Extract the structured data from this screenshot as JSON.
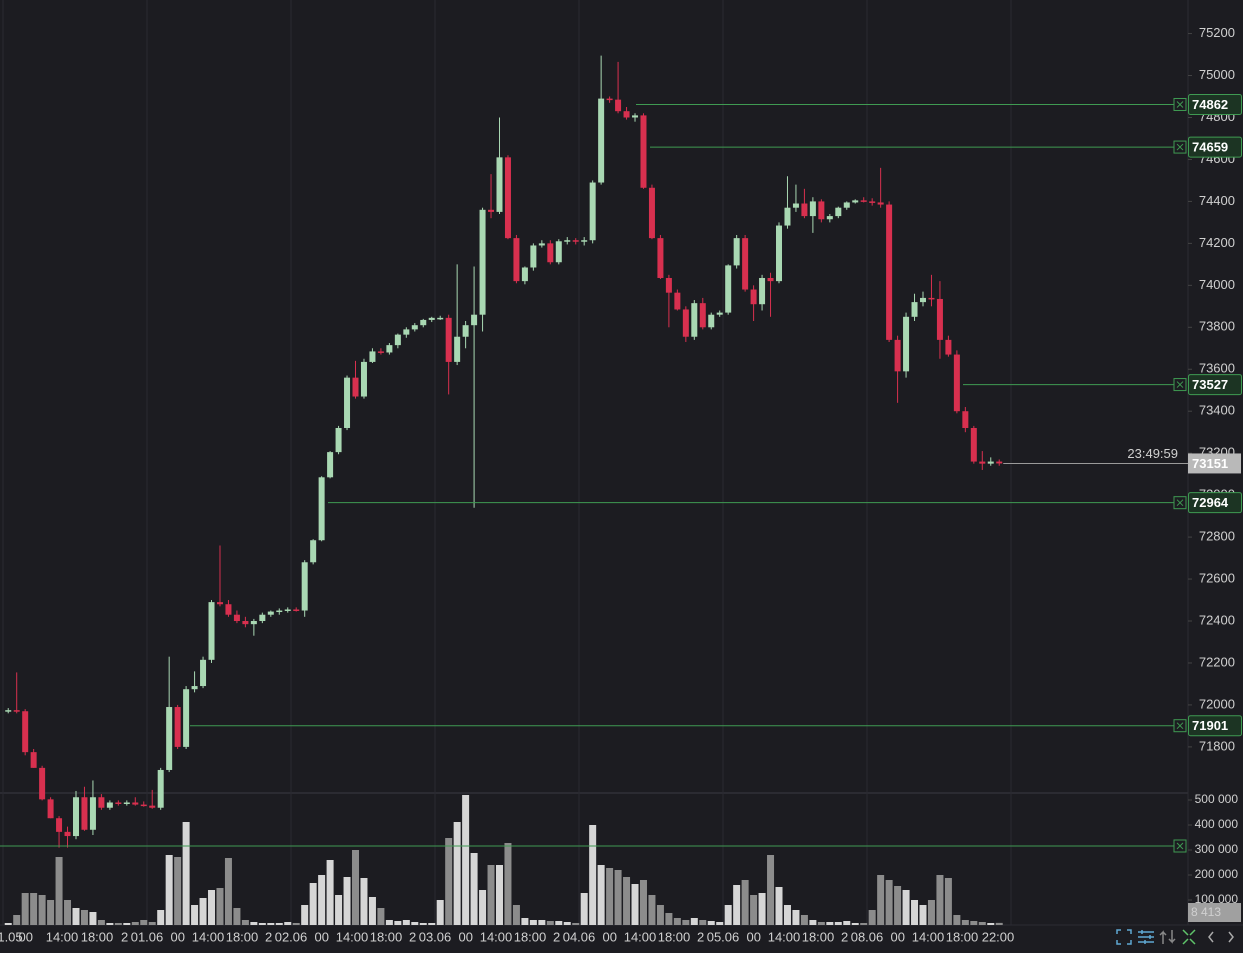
{
  "chart_data": {
    "type": "candlestick",
    "colors": {
      "up": "#a9d8b3",
      "down": "#d8304f",
      "volume_up": "#d6d6d6",
      "volume_down": "#8c8c8c",
      "level": "#3f9a52",
      "date_label": "#d47fe0"
    },
    "ylim": [
      71585,
      75360
    ],
    "yticks": [
      75200,
      75000,
      74800,
      74600,
      74400,
      74200,
      74000,
      73800,
      73600,
      73400,
      73200,
      73000,
      72800,
      72600,
      72400,
      72200,
      72000,
      71800
    ],
    "volume_ylim": [
      0,
      520000
    ],
    "volume_yticks": [
      {
        "value": 500000,
        "label": "500 000"
      },
      {
        "value": 400000,
        "label": "400 000"
      },
      {
        "value": 300000,
        "label": "300 000"
      },
      {
        "value": 200000,
        "label": "200 000"
      },
      {
        "value": 100000,
        "label": "100 000"
      }
    ],
    "x_labels": [
      "1.05",
      "00",
      "14:00",
      "18:00",
      "2",
      "01.06",
      "00",
      "14:00",
      "18:00",
      "2",
      "02.06",
      "00",
      "14:00",
      "18:00",
      "2",
      "03.06",
      "00",
      "14:00",
      "18:00",
      "2",
      "04.06",
      "00",
      "14:00",
      "18:00",
      "2",
      "05.06",
      "00",
      "14:00",
      "18:00",
      "2",
      "08.06",
      "00",
      "14:00",
      "18:00",
      "22:00"
    ],
    "levels": [
      74862,
      74659,
      73527,
      72964,
      71901
    ],
    "volume_levels": [
      316000
    ],
    "countdown": "23:49:59",
    "volume_last_label": "8 413",
    "candles": [
      [
        71970,
        71985,
        71960,
        71975
      ],
      [
        71975,
        72155,
        71960,
        71970
      ],
      [
        71970,
        71980,
        71760,
        71775
      ],
      [
        71775,
        71790,
        71700,
        71700
      ],
      [
        71700,
        71710,
        71545,
        71550
      ],
      [
        71550,
        71560,
        71460,
        71460
      ],
      [
        71460,
        71470,
        71320,
        71395
      ],
      [
        71395,
        71420,
        71320,
        71375
      ],
      [
        71375,
        71590,
        71360,
        71560
      ],
      [
        71560,
        71610,
        71400,
        71405
      ],
      [
        71405,
        71640,
        71380,
        71560
      ],
      [
        71560,
        71575,
        71500,
        71510
      ],
      [
        71510,
        71545,
        71500,
        71535
      ],
      [
        71535,
        71545,
        71520,
        71530
      ],
      [
        71530,
        71545,
        71520,
        71535
      ],
      [
        71535,
        71560,
        71520,
        71525
      ],
      [
        71525,
        71540,
        71515,
        71520
      ],
      [
        71520,
        71595,
        71505,
        71510
      ],
      [
        71510,
        71700,
        71500,
        71690
      ],
      [
        71690,
        72230,
        71680,
        71990
      ],
      [
        71990,
        72000,
        71790,
        71800
      ],
      [
        71800,
        72090,
        71790,
        72075
      ],
      [
        72075,
        72160,
        72060,
        72090
      ],
      [
        72090,
        72230,
        72080,
        72215
      ],
      [
        72215,
        72500,
        72200,
        72490
      ],
      [
        72490,
        72760,
        72470,
        72480
      ],
      [
        72480,
        72500,
        72420,
        72430
      ],
      [
        72430,
        72450,
        72390,
        72400
      ],
      [
        72400,
        72420,
        72370,
        72385
      ],
      [
        72385,
        72410,
        72330,
        72400
      ],
      [
        72400,
        72440,
        72390,
        72430
      ],
      [
        72430,
        72450,
        72420,
        72445
      ],
      [
        72445,
        72460,
        72430,
        72450
      ],
      [
        72450,
        72465,
        72440,
        72455
      ],
      [
        72455,
        72465,
        72445,
        72450
      ],
      [
        72450,
        72690,
        72420,
        72680
      ],
      [
        72680,
        72790,
        72670,
        72785
      ],
      [
        72785,
        73090,
        72780,
        73085
      ],
      [
        73085,
        73210,
        73080,
        73205
      ],
      [
        73205,
        73330,
        73195,
        73320
      ],
      [
        73320,
        73570,
        73310,
        73560
      ],
      [
        73560,
        73640,
        73460,
        73470
      ],
      [
        73470,
        73650,
        73460,
        73635
      ],
      [
        73635,
        73700,
        73630,
        73685
      ],
      [
        73685,
        73700,
        73670,
        73680
      ],
      [
        73680,
        73725,
        73670,
        73715
      ],
      [
        73715,
        73770,
        73700,
        73765
      ],
      [
        73765,
        73800,
        73750,
        73790
      ],
      [
        73790,
        73820,
        73780,
        73810
      ],
      [
        73810,
        73840,
        73800,
        73835
      ],
      [
        73835,
        73850,
        73825,
        73845
      ],
      [
        73845,
        73855,
        73835,
        73845
      ],
      [
        73845,
        73860,
        73480,
        73635
      ],
      [
        73635,
        74100,
        73620,
        73755
      ],
      [
        73755,
        73830,
        73700,
        73810
      ],
      [
        73810,
        74090,
        72940,
        73860
      ],
      [
        73860,
        74370,
        73780,
        74360
      ],
      [
        74360,
        74530,
        74320,
        74350
      ],
      [
        74350,
        74800,
        74340,
        74610
      ],
      [
        74610,
        74620,
        74220,
        74225
      ],
      [
        74225,
        74240,
        74010,
        74020
      ],
      [
        74020,
        74090,
        74005,
        74085
      ],
      [
        74085,
        74200,
        74070,
        74190
      ],
      [
        74190,
        74215,
        74180,
        74200
      ],
      [
        74200,
        74215,
        74100,
        74110
      ],
      [
        74110,
        74220,
        74100,
        74210
      ],
      [
        74210,
        74230,
        74195,
        74215
      ],
      [
        74215,
        74225,
        74195,
        74210
      ],
      [
        74210,
        74230,
        74190,
        74215
      ],
      [
        74215,
        74500,
        74200,
        74490
      ],
      [
        74490,
        75095,
        74480,
        74890
      ],
      [
        74890,
        74900,
        74870,
        74885
      ],
      [
        74885,
        75065,
        74820,
        74830
      ],
      [
        74830,
        74850,
        74790,
        74800
      ],
      [
        74800,
        74820,
        74780,
        74810
      ],
      [
        74810,
        74820,
        74460,
        74465
      ],
      [
        74465,
        74480,
        74220,
        74225
      ],
      [
        74225,
        74240,
        74030,
        74035
      ],
      [
        74035,
        74050,
        73800,
        73965
      ],
      [
        73965,
        73980,
        73880,
        73885
      ],
      [
        73885,
        73900,
        73730,
        73755
      ],
      [
        73755,
        73930,
        73740,
        73915
      ],
      [
        73915,
        73940,
        73790,
        73800
      ],
      [
        73800,
        73870,
        73790,
        73860
      ],
      [
        73860,
        73880,
        73850,
        73870
      ],
      [
        73870,
        74100,
        73860,
        74095
      ],
      [
        74095,
        74240,
        74080,
        74225
      ],
      [
        74225,
        74240,
        73970,
        73980
      ],
      [
        73980,
        74000,
        73830,
        73910
      ],
      [
        73910,
        74050,
        73880,
        74035
      ],
      [
        74035,
        74060,
        73850,
        74020
      ],
      [
        74020,
        74300,
        74010,
        74285
      ],
      [
        74285,
        74520,
        74270,
        74370
      ],
      [
        74370,
        74480,
        74350,
        74390
      ],
      [
        74390,
        74460,
        74320,
        74330
      ],
      [
        74330,
        74420,
        74250,
        74400
      ],
      [
        74400,
        74410,
        74300,
        74315
      ],
      [
        74315,
        74340,
        74300,
        74330
      ],
      [
        74330,
        74375,
        74320,
        74370
      ],
      [
        74370,
        74400,
        74360,
        74395
      ],
      [
        74395,
        74410,
        74390,
        74405
      ],
      [
        74405,
        74420,
        74395,
        74400
      ],
      [
        74400,
        74415,
        74380,
        74395
      ],
      [
        74395,
        74560,
        74370,
        74385
      ],
      [
        74385,
        74400,
        73730,
        73740
      ],
      [
        73740,
        73760,
        73440,
        73590
      ],
      [
        73590,
        73870,
        73560,
        73850
      ],
      [
        73850,
        73960,
        73830,
        73920
      ],
      [
        73920,
        73970,
        73900,
        73940
      ],
      [
        73940,
        74050,
        73900,
        73935
      ],
      [
        73935,
        74020,
        73650,
        73740
      ],
      [
        73740,
        73760,
        73660,
        73670
      ],
      [
        73670,
        73690,
        73390,
        73400
      ],
      [
        73400,
        73420,
        73300,
        73320
      ],
      [
        73320,
        73330,
        73150,
        73160
      ],
      [
        73160,
        73210,
        73120,
        73150
      ],
      [
        73150,
        73180,
        73140,
        73160
      ],
      [
        73160,
        73170,
        73140,
        73151
      ]
    ],
    "volumes": [
      8000,
      40000,
      128000,
      128000,
      120000,
      100000,
      272000,
      100000,
      68000,
      60000,
      52000,
      20000,
      8000,
      8000,
      8000,
      12000,
      20000,
      12000,
      60000,
      280000,
      272000,
      412000,
      80000,
      108000,
      140000,
      148000,
      268000,
      68000,
      20000,
      12000,
      8000,
      8000,
      8000,
      12000,
      8000,
      80000,
      168000,
      200000,
      260000,
      120000,
      192000,
      300000,
      188000,
      112000,
      68000,
      20000,
      16000,
      20000,
      12000,
      8000,
      8000,
      100000,
      348000,
      412000,
      520000,
      288000,
      140000,
      240000,
      240000,
      328000,
      80000,
      28000,
      20000,
      20000,
      16000,
      16000,
      12000,
      8000,
      128000,
      400000,
      240000,
      228000,
      220000,
      192000,
      164000,
      180000,
      120000,
      80000,
      48000,
      28000,
      20000,
      28000,
      20000,
      16000,
      12000,
      80000,
      160000,
      180000,
      120000,
      128000,
      280000,
      152000,
      80000,
      60000,
      40000,
      20000,
      12000,
      12000,
      12000,
      16000,
      8000,
      8000,
      60000,
      200000,
      180000,
      156000,
      140000,
      100000,
      80000,
      100000,
      200000,
      188000,
      40000,
      20000,
      16000,
      12000,
      8000,
      8413
    ]
  }
}
